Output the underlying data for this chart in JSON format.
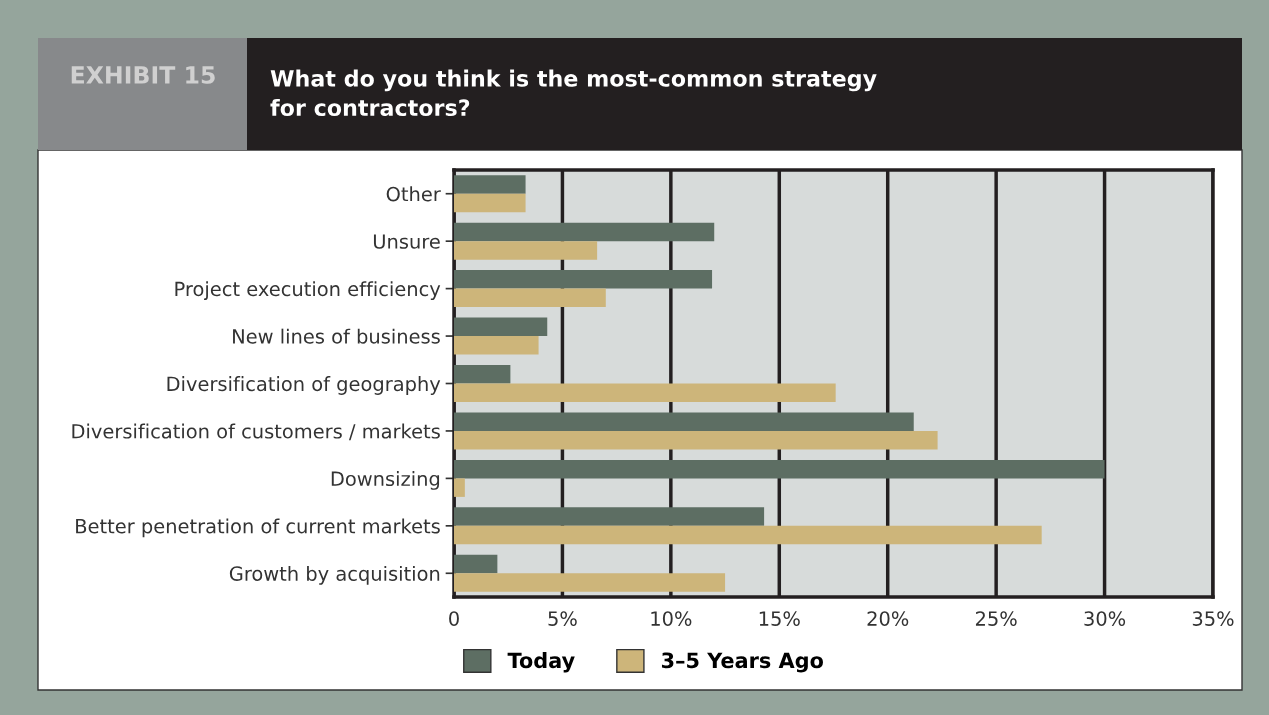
{
  "chart_data": {
    "type": "bar",
    "orientation": "horizontal",
    "title": "What do you think is the most-common strategy\nfor contractors?",
    "annotations": [
      "EXHIBIT 15"
    ],
    "categories": [
      "Other",
      "Unsure",
      "Project execution efficiency",
      "New lines of business",
      "Diversification of geography",
      "Diversification of customers / markets",
      "Downsizing",
      "Better penetration of current markets",
      "Growth by acquisition"
    ],
    "series": [
      {
        "name": "Today",
        "color": "#5d6e63",
        "values": [
          3.3,
          12.0,
          11.9,
          4.3,
          2.6,
          21.2,
          30.0,
          14.3,
          2.0
        ]
      },
      {
        "name": "3–5 Years Ago",
        "color": "#cdb57a",
        "values": [
          3.3,
          6.6,
          7.0,
          3.9,
          17.6,
          22.3,
          0.5,
          27.1,
          12.5
        ]
      }
    ],
    "xlim": [
      0,
      35
    ],
    "xticks": [
      {
        "value": 0,
        "label": "0"
      },
      {
        "value": 5,
        "label": "5%"
      },
      {
        "value": 10,
        "label": "10%"
      },
      {
        "value": 15,
        "label": "15%"
      },
      {
        "value": 20,
        "label": "20%"
      },
      {
        "value": 25,
        "label": "25%"
      },
      {
        "value": 30,
        "label": "30%"
      },
      {
        "value": 35,
        "label": "35%"
      }
    ],
    "grid": "x",
    "legend": "bottom left"
  }
}
